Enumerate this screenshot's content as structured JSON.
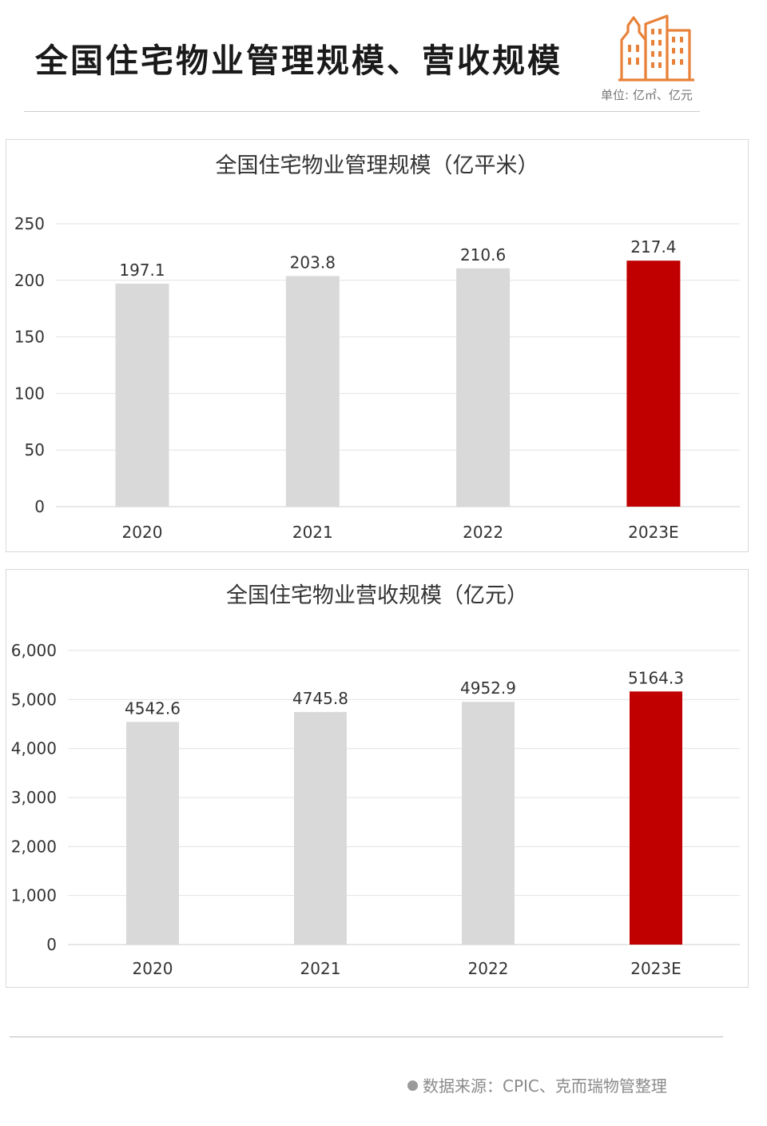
{
  "header": {
    "title": "全国住宅物业管理规模、营收规模",
    "unit_note": "单位: 亿㎡、亿元",
    "logo_icon": "building-icon",
    "logo_color": "#e8823a"
  },
  "colors": {
    "bar_default": "#d9d9d9",
    "bar_highlight": "#c00000",
    "grid": "#e3e3e3"
  },
  "chart_data": [
    {
      "type": "bar",
      "title": "全国住宅物业管理规模（亿平米）",
      "categories": [
        "2020",
        "2021",
        "2022",
        "2023E"
      ],
      "values": [
        197.1,
        203.8,
        210.6,
        217.4
      ],
      "value_labels": [
        "197.1",
        "203.8",
        "210.6",
        "217.4"
      ],
      "highlight_index": 3,
      "ylim": [
        0,
        250
      ],
      "yticks": [
        0,
        50,
        100,
        150,
        200,
        250
      ],
      "ytick_labels": [
        "0",
        "50",
        "100",
        "150",
        "200",
        "250"
      ],
      "grid": true,
      "xlabel": "",
      "ylabel": ""
    },
    {
      "type": "bar",
      "title": "全国住宅物业营收规模（亿元）",
      "categories": [
        "2020",
        "2021",
        "2022",
        "2023E"
      ],
      "values": [
        4542.6,
        4745.8,
        4952.9,
        5164.3
      ],
      "value_labels": [
        "4542.6",
        "4745.8",
        "4952.9",
        "5164.3"
      ],
      "highlight_index": 3,
      "ylim": [
        0,
        6000
      ],
      "yticks": [
        0,
        1000,
        2000,
        3000,
        4000,
        5000,
        6000
      ],
      "ytick_labels": [
        "0",
        "1,000",
        "2,000",
        "3,000",
        "4,000",
        "5,000",
        "6,000"
      ],
      "grid": true,
      "xlabel": "",
      "ylabel": ""
    }
  ],
  "footer": {
    "source": "数据来源：CPIC、克而瑞物管整理"
  }
}
